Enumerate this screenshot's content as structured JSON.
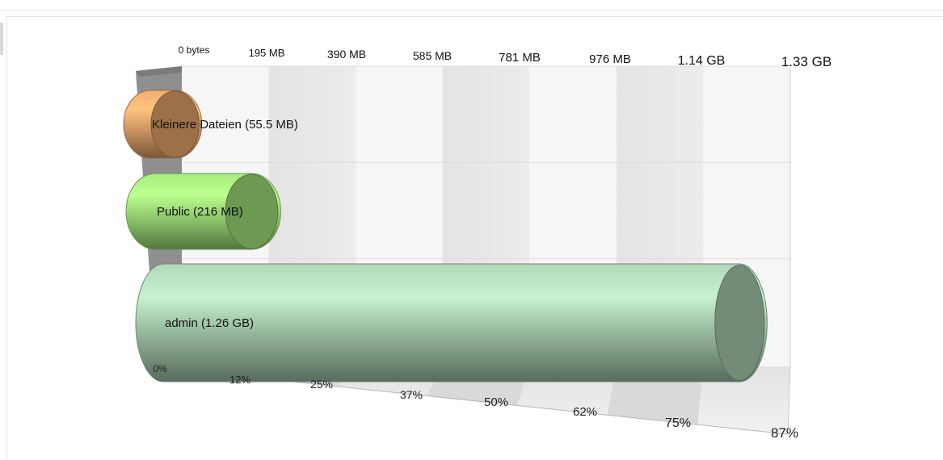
{
  "chart_data": {
    "type": "bar",
    "orientation": "horizontal",
    "style": "3d-cylinder",
    "categories": [
      "Kleinere Dateien",
      "Public",
      "admin"
    ],
    "values_mb": [
      55.5,
      216,
      1290.24
    ],
    "value_labels": [
      "Kleinere Dateien (55.5 MB)",
      "Public (216 MB)",
      "admin (1.26 GB)"
    ],
    "colors": [
      "#c8915e",
      "#8cc46a",
      "#93b49a"
    ],
    "x_top_ticks": [
      "0 bytes",
      "195 MB",
      "390 MB",
      "585 MB",
      "781 MB",
      "976 MB",
      "1.14 GB",
      "1.33 GB"
    ],
    "x_bottom_ticks": [
      "0%",
      "12%",
      "25%",
      "37%",
      "50%",
      "62%",
      "75%",
      "87%"
    ],
    "xlim_mb": [
      0,
      1362
    ],
    "grid": true
  }
}
